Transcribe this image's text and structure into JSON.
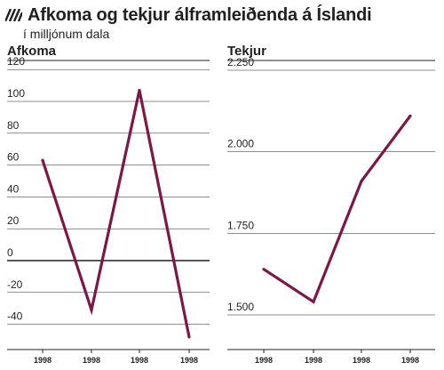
{
  "header": {
    "title": "Afkoma og tekjur álframleiðenda á Íslandi",
    "subtitle": "í milljónum dala",
    "icon": "hatch-icon"
  },
  "colors": {
    "line": "#7a1848",
    "grid": "#231f20"
  },
  "chart_data": [
    {
      "type": "line",
      "title": "Afkoma",
      "categories": [
        "1998",
        "1998",
        "1998",
        "1998"
      ],
      "series": [
        {
          "values": [
            63,
            -31,
            107,
            -48
          ]
        }
      ],
      "yticks": [
        "120",
        "100",
        "80",
        "60",
        "40",
        "20",
        "0",
        "-20",
        "-40"
      ],
      "ylim": [
        -50,
        125
      ],
      "grid": true
    },
    {
      "type": "line",
      "title": "Tekjur",
      "categories": [
        "1998",
        "1998",
        "1998",
        "1998"
      ],
      "series": [
        {
          "values": [
            1640,
            1540,
            1910,
            2110
          ]
        }
      ],
      "yticks": [
        "2.250",
        "2.000",
        "1.750",
        "1.500"
      ],
      "ylim": [
        1450,
        2280
      ],
      "grid": true
    }
  ]
}
